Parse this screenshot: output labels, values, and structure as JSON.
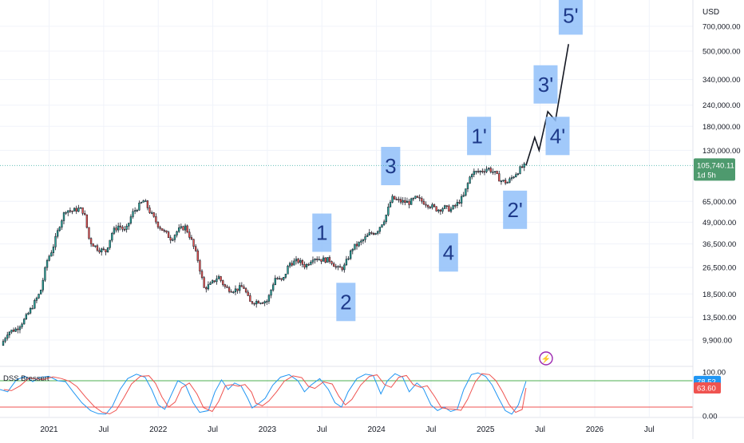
{
  "chart_data": {
    "type": "candlestick",
    "currency_label": "USD",
    "price_scale": "log",
    "price_ticks": [
      "700,000.00",
      "500,000.00",
      "340,000.00",
      "240,000.00",
      "180,000.00",
      "130,000.00",
      "65,000.00",
      "49,000.00",
      "36,500.00",
      "26,500.00",
      "18,500.00",
      "13,500.00",
      "9,900.00"
    ],
    "price_tick_values": [
      700000,
      500000,
      340000,
      240000,
      180000,
      130000,
      65000,
      49000,
      36500,
      26500,
      18500,
      13500,
      9900
    ],
    "price_range": [
      7000,
      1000000
    ],
    "current_price": "105,740.11",
    "current_price_value": 105740.11,
    "countdown": "1d 5h",
    "time_labels": [
      "2021",
      "Jul",
      "2022",
      "Jul",
      "2023",
      "Jul",
      "2024",
      "Jul",
      "2025",
      "Jul",
      "2026",
      "Jul"
    ],
    "time_label_values": [
      2021.0,
      2021.5,
      2022.0,
      2022.5,
      2023.0,
      2023.5,
      2024.0,
      2024.5,
      2025.0,
      2025.5,
      2026.0,
      2026.5
    ],
    "x_range": [
      2020.55,
      2026.9
    ],
    "colors": {
      "up": "#26a69a",
      "down": "#ef5350",
      "projection": "#131722",
      "label_box": "#90bff9",
      "label_text": "#1e3a8a"
    },
    "price_path": [
      [
        2020.56,
        9200
      ],
      [
        2020.62,
        11000
      ],
      [
        2020.7,
        11500
      ],
      [
        2020.78,
        13200
      ],
      [
        2020.85,
        15800
      ],
      [
        2020.92,
        19000
      ],
      [
        2020.98,
        29000
      ],
      [
        2021.03,
        34000
      ],
      [
        2021.1,
        48000
      ],
      [
        2021.15,
        58000
      ],
      [
        2021.21,
        57000
      ],
      [
        2021.28,
        59000
      ],
      [
        2021.32,
        56000
      ],
      [
        2021.37,
        38000
      ],
      [
        2021.45,
        34000
      ],
      [
        2021.52,
        33000
      ],
      [
        2021.58,
        43000
      ],
      [
        2021.64,
        47000
      ],
      [
        2021.7,
        43000
      ],
      [
        2021.76,
        55000
      ],
      [
        2021.82,
        61000
      ],
      [
        2021.87,
        66000
      ],
      [
        2021.92,
        57000
      ],
      [
        2022.0,
        47000
      ],
      [
        2022.07,
        42000
      ],
      [
        2022.12,
        39000
      ],
      [
        2022.18,
        44000
      ],
      [
        2022.25,
        46000
      ],
      [
        2022.3,
        39000
      ],
      [
        2022.36,
        30000
      ],
      [
        2022.42,
        20000
      ],
      [
        2022.48,
        21000
      ],
      [
        2022.55,
        23500
      ],
      [
        2022.62,
        20000
      ],
      [
        2022.7,
        19500
      ],
      [
        2022.78,
        20500
      ],
      [
        2022.84,
        16500
      ],
      [
        2022.92,
        16800
      ],
      [
        2023.0,
        16800
      ],
      [
        2023.07,
        23000
      ],
      [
        2023.14,
        22000
      ],
      [
        2023.2,
        28000
      ],
      [
        2023.28,
        29000
      ],
      [
        2023.35,
        27000
      ],
      [
        2023.42,
        30500
      ],
      [
        2023.5,
        29500
      ],
      [
        2023.58,
        29300
      ],
      [
        2023.64,
        26000
      ],
      [
        2023.7,
        26500
      ],
      [
        2023.78,
        34500
      ],
      [
        2023.86,
        37500
      ],
      [
        2023.94,
        42000
      ],
      [
        2024.0,
        43000
      ],
      [
        2024.08,
        52000
      ],
      [
        2024.14,
        68000
      ],
      [
        2024.22,
        65000
      ],
      [
        2024.3,
        64000
      ],
      [
        2024.36,
        68000
      ],
      [
        2024.42,
        65000
      ],
      [
        2024.5,
        61000
      ],
      [
        2024.56,
        58000
      ],
      [
        2024.62,
        60000
      ],
      [
        2024.68,
        58000
      ],
      [
        2024.74,
        63000
      ],
      [
        2024.8,
        70000
      ],
      [
        2024.87,
        96000
      ],
      [
        2024.94,
        97000
      ],
      [
        2025.02,
        102000
      ],
      [
        2025.08,
        96000
      ],
      [
        2025.14,
        86000
      ],
      [
        2025.2,
        84000
      ],
      [
        2025.27,
        94000
      ],
      [
        2025.33,
        103000
      ],
      [
        2025.37,
        106000
      ]
    ],
    "projection_path": [
      [
        2025.37,
        105740
      ],
      [
        2025.45,
        155000
      ],
      [
        2025.49,
        130000
      ],
      [
        2025.57,
        220000
      ],
      [
        2025.64,
        195000
      ],
      [
        2025.76,
        550000
      ]
    ],
    "wave_labels": [
      {
        "text": "1",
        "x": 2023.5,
        "price": 42500
      },
      {
        "text": "2",
        "x": 2023.72,
        "price": 16600
      },
      {
        "text": "3",
        "x": 2024.13,
        "price": 105000
      },
      {
        "text": "4",
        "x": 2024.66,
        "price": 32500
      },
      {
        "text": "1'",
        "x": 2024.94,
        "price": 158000
      },
      {
        "text": "2'",
        "x": 2025.27,
        "price": 58000
      },
      {
        "text": "3'",
        "x": 2025.55,
        "price": 318000
      },
      {
        "text": "4'",
        "x": 2025.66,
        "price": 158000
      },
      {
        "text": "5'",
        "x": 2025.78,
        "price": 810000
      }
    ],
    "oscillator": {
      "name": "DSS Bressert",
      "ticks": [
        "100.00",
        "0.00"
      ],
      "tick_values": [
        100,
        0
      ],
      "value_labels": [
        "78.52",
        "63.60"
      ],
      "values": [
        78.52,
        63.6
      ],
      "upper_level": 80,
      "lower_level": 20,
      "colors": {
        "fast": "#2196f3",
        "slow": "#ef5350",
        "upper": "#4caf50",
        "lower": "#ef5350"
      },
      "series": [
        [
          2020.55,
          60
        ],
        [
          2020.62,
          55
        ],
        [
          2020.7,
          82
        ],
        [
          2020.78,
          90
        ],
        [
          2020.85,
          78
        ],
        [
          2020.92,
          88
        ],
        [
          2021.0,
          90
        ],
        [
          2021.08,
          80
        ],
        [
          2021.15,
          78
        ],
        [
          2021.22,
          55
        ],
        [
          2021.3,
          30
        ],
        [
          2021.38,
          12
        ],
        [
          2021.45,
          5
        ],
        [
          2021.52,
          4
        ],
        [
          2021.58,
          22
        ],
        [
          2021.65,
          60
        ],
        [
          2021.72,
          85
        ],
        [
          2021.8,
          95
        ],
        [
          2021.88,
          88
        ],
        [
          2021.94,
          60
        ],
        [
          2022.0,
          25
        ],
        [
          2022.06,
          15
        ],
        [
          2022.12,
          48
        ],
        [
          2022.18,
          80
        ],
        [
          2022.25,
          70
        ],
        [
          2022.32,
          30
        ],
        [
          2022.38,
          8
        ],
        [
          2022.46,
          12
        ],
        [
          2022.52,
          55
        ],
        [
          2022.58,
          82
        ],
        [
          2022.64,
          60
        ],
        [
          2022.7,
          75
        ],
        [
          2022.76,
          68
        ],
        [
          2022.82,
          40
        ],
        [
          2022.86,
          18
        ],
        [
          2022.92,
          28
        ],
        [
          2022.98,
          40
        ],
        [
          2023.05,
          70
        ],
        [
          2023.12,
          88
        ],
        [
          2023.2,
          94
        ],
        [
          2023.28,
          80
        ],
        [
          2023.34,
          55
        ],
        [
          2023.4,
          70
        ],
        [
          2023.48,
          85
        ],
        [
          2023.56,
          60
        ],
        [
          2023.62,
          30
        ],
        [
          2023.68,
          20
        ],
        [
          2023.74,
          55
        ],
        [
          2023.82,
          85
        ],
        [
          2023.9,
          95
        ],
        [
          2023.97,
          92
        ],
        [
          2024.04,
          50
        ],
        [
          2024.1,
          80
        ],
        [
          2024.17,
          96
        ],
        [
          2024.24,
          88
        ],
        [
          2024.3,
          55
        ],
        [
          2024.37,
          75
        ],
        [
          2024.43,
          62
        ],
        [
          2024.5,
          25
        ],
        [
          2024.56,
          12
        ],
        [
          2024.62,
          20
        ],
        [
          2024.68,
          10
        ],
        [
          2024.74,
          15
        ],
        [
          2024.8,
          60
        ],
        [
          2024.87,
          94
        ],
        [
          2024.93,
          98
        ],
        [
          2025.0,
          90
        ],
        [
          2025.06,
          70
        ],
        [
          2025.12,
          40
        ],
        [
          2025.18,
          12
        ],
        [
          2025.24,
          4
        ],
        [
          2025.3,
          25
        ],
        [
          2025.37,
          78.5
        ]
      ]
    }
  },
  "toolbar": {
    "refresh_glyph": "⚡"
  }
}
